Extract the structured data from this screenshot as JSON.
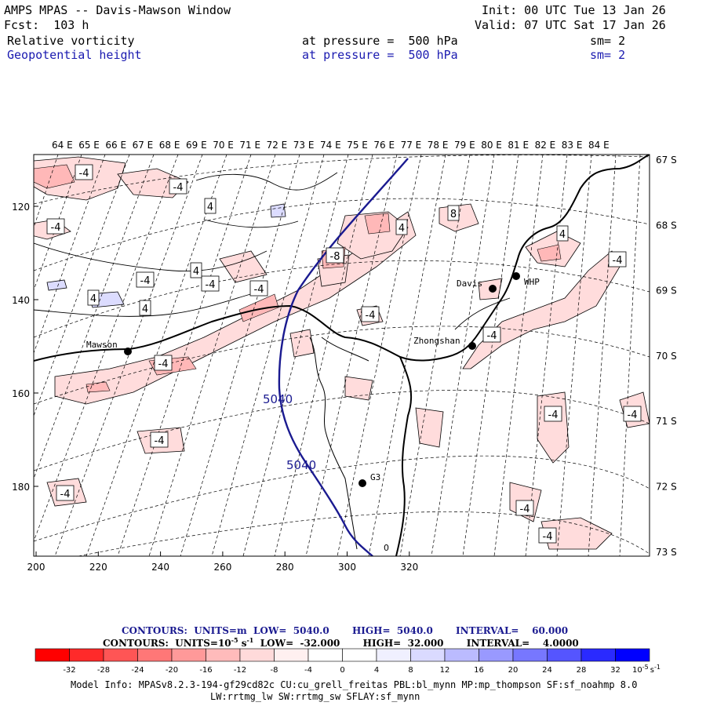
{
  "header": {
    "title": "AMPS MPAS -- Davis-Mawson Window",
    "init": "Init: 00 UTC Tue 13 Jan 26",
    "fcst": "Fcst:  103 h",
    "valid": "Valid: 07 UTC Sat 17 Jan 26",
    "field1": "Relative vorticity",
    "field1_level": "at pressure =  500 hPa",
    "field1_sm": "sm= 2",
    "field2": "Geopotential height",
    "field2_level": "at pressure =  500 hPa",
    "field2_sm": "sm= 2"
  },
  "map": {
    "lon_labels": [
      "64 E",
      "65 E",
      "66 E",
      "67 E",
      "68 E",
      "69 E",
      "70 E",
      "71 E",
      "72 E",
      "73 E",
      "74 E",
      "75 E",
      "76 E",
      "77 E",
      "78 E",
      "79 E",
      "80 E",
      "81 E",
      "82 E",
      "83 E",
      "84 E"
    ],
    "lat_labels": [
      "67 S",
      "68 S",
      "69 S",
      "70 S",
      "71 S",
      "72 S",
      "73 S"
    ],
    "x_ticks": [
      "200",
      "220",
      "240",
      "260",
      "280",
      "300",
      "320"
    ],
    "y_ticks": [
      "120",
      "140",
      "160",
      "180"
    ],
    "stations": [
      {
        "name": "Mawson"
      },
      {
        "name": "Davis"
      },
      {
        "name": "WHP"
      },
      {
        "name": "Zhongshan"
      },
      {
        "name": "G3"
      }
    ],
    "height_labels": [
      "5040",
      "5040"
    ],
    "vort_labels": [
      "-4",
      "-4",
      "4",
      "-4",
      "-4",
      "-4",
      "-4",
      "4",
      "4",
      "-4",
      "-8",
      "4",
      "8",
      "4",
      "-4",
      "-4",
      "-4",
      "-4",
      "-4",
      "-4",
      "-4",
      "-4",
      "-4",
      "4"
    ],
    "zero_label": "0"
  },
  "info": {
    "line1_label": "CONTOURS:  UNITS=m  LOW=  5040.0       HIGH=  5040.0       INTERVAL=    60.000",
    "line2_label": "CONTOURS:  UNITS=10",
    "line2_exp": "-5",
    "line2_s": " s",
    "line2_sexp": "-1",
    "line2_rest": "  LOW=  -32.000       HIGH=  32.000       INTERVAL=    4.0000"
  },
  "colorbar": {
    "colors": [
      "#ff0000",
      "#ff2a2a",
      "#ff5555",
      "#ff7777",
      "#ff9999",
      "#ffbbbb",
      "#ffdada",
      "#fff0f0",
      "#ffffff",
      "#ffffff",
      "#f0f0ff",
      "#dadaff",
      "#bbbbff",
      "#9999ff",
      "#7777ff",
      "#5555ff",
      "#2a2aff",
      "#0000ff"
    ],
    "labels": [
      "-32",
      "-28",
      "-24",
      "-20",
      "-16",
      "-12",
      "-8",
      "-4",
      "0",
      "4",
      "8",
      "12",
      "16",
      "20",
      "24",
      "28",
      "32"
    ],
    "unit": "10",
    "unit_exp": "-5",
    "unit_s": "s",
    "unit_sexp": "-1"
  },
  "model_info": {
    "line1": "Model Info: MPASv8.2.3-194-gf29cd82c CU:cu_grell_freitas PBL:bl_mynn MP:mp_thompson SF:sf_noahmp 8.0",
    "line2": "LW:rrtmg_lw SW:rrtmg_sw SFLAY:sf_mynn"
  }
}
